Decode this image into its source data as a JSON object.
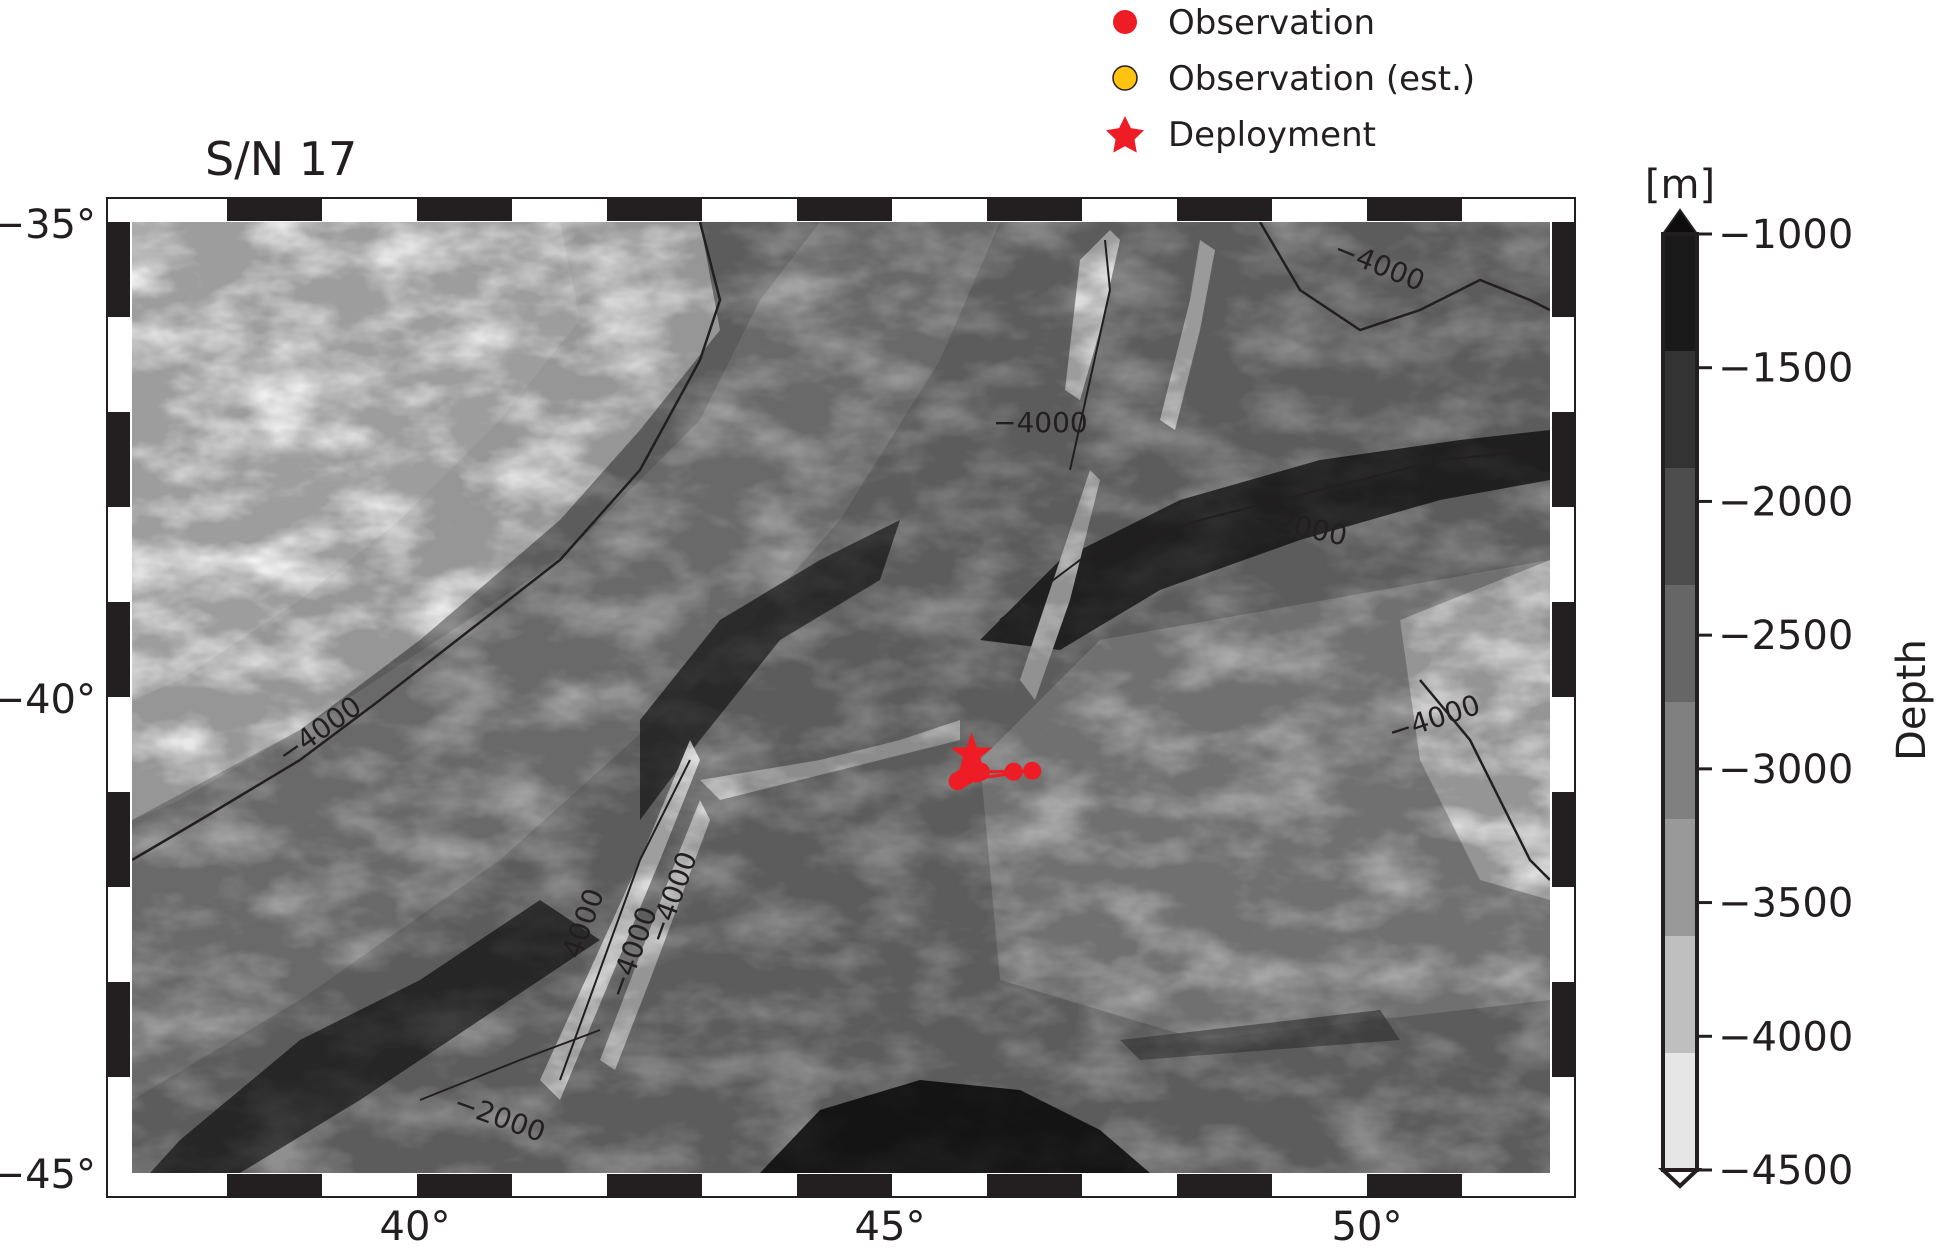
{
  "title": "S/N 17",
  "legend": {
    "items": [
      {
        "label": "Observation",
        "symbol": "circle",
        "color": "#ee1c24"
      },
      {
        "label": "Observation (est.)",
        "symbol": "circle",
        "color": "#ffc20e"
      },
      {
        "label": "Deployment",
        "symbol": "star",
        "color": "#ee1c24"
      }
    ]
  },
  "map": {
    "lon_range": [
      37,
      52.2
    ],
    "lat_range": [
      -45,
      -35
    ],
    "x_ticks": [
      "40°",
      "45°",
      "50°"
    ],
    "y_ticks": [
      "−35°",
      "−40°",
      "−45°"
    ],
    "contour_labels": [
      "−4000",
      "−4000",
      "−2000",
      "−4000",
      "−4000",
      "4000",
      "−4000",
      "−4000",
      "−2000"
    ]
  },
  "colorbar": {
    "unit": "[m]",
    "label": "Depth",
    "ticks": [
      "−1000",
      "−1500",
      "−2000",
      "−2500",
      "−3000",
      "−3500",
      "−4000",
      "−4500"
    ],
    "colors": [
      "#1a1a1a",
      "#333333",
      "#4d4d4d",
      "#666666",
      "#808080",
      "#999999",
      "#bfbfbf",
      "#e6e6e6"
    ]
  },
  "chart_data": {
    "type": "scatter",
    "title": "S/N 17",
    "xlabel": "",
    "ylabel": "",
    "xlim": [
      37,
      52.2
    ],
    "ylim": [
      -45,
      -35
    ],
    "series": [
      {
        "name": "Deployment",
        "points": [
          [
            46.0,
            -40.6
          ]
        ]
      },
      {
        "name": "Observation",
        "points": [
          [
            45.9,
            -40.85
          ],
          [
            46.05,
            -40.8
          ],
          [
            46.0,
            -40.75
          ],
          [
            45.95,
            -40.82
          ],
          [
            46.1,
            -40.78
          ],
          [
            46.45,
            -40.78
          ],
          [
            46.65,
            -40.77
          ],
          [
            45.85,
            -40.88
          ]
        ]
      },
      {
        "name": "Observation (est.)",
        "points": []
      }
    ],
    "colorbar": {
      "label": "Depth",
      "unit": "[m]",
      "range": [
        -4500,
        -1000
      ],
      "step": 500
    }
  }
}
